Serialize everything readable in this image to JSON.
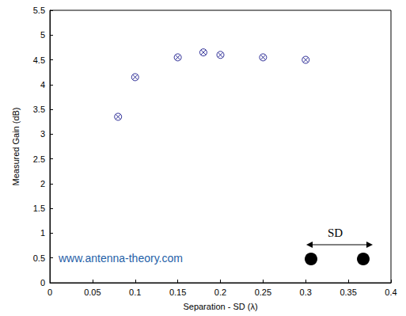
{
  "chart_data": {
    "type": "scatter",
    "xlabel": "Separation - SD (λ)",
    "ylabel": "Measured Gain (dB)",
    "x": [
      0.08,
      0.1,
      0.15,
      0.18,
      0.2,
      0.25,
      0.3
    ],
    "values": [
      3.35,
      4.15,
      4.55,
      4.65,
      4.6,
      4.55,
      4.5
    ],
    "color": "#000080",
    "marker": "circle-x",
    "xlim": [
      0,
      0.4
    ],
    "xticks": [
      0,
      0.05,
      0.1,
      0.15,
      0.2,
      0.25,
      0.3,
      0.35,
      0.4
    ],
    "ylim": [
      0,
      5.5
    ],
    "yticks": [
      0,
      0.5,
      1,
      1.5,
      2,
      2.5,
      3,
      3.5,
      4,
      4.5,
      5,
      5.5
    ],
    "grid": false,
    "annotations": [
      "www.antenna-theory.com",
      "SD"
    ]
  }
}
